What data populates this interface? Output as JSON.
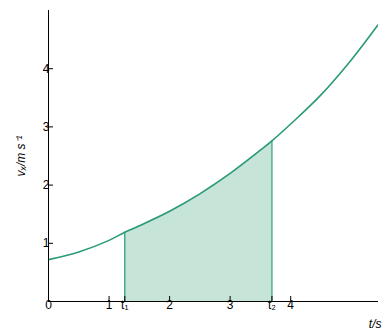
{
  "chart_data": {
    "type": "line",
    "x_label": "t/s",
    "y_label": "vₓ/m s⁻¹",
    "x": [
      0,
      0.5,
      1,
      1.26,
      1.5,
      2,
      2.5,
      3,
      3.5,
      3.69,
      4,
      4.5,
      5,
      5.44
    ],
    "values": [
      0.72,
      0.85,
      1.05,
      1.19,
      1.3,
      1.55,
      1.85,
      2.2,
      2.6,
      2.76,
      3.05,
      3.55,
      4.15,
      4.75
    ],
    "color": "#2a9a7a",
    "shaded_range": [
      1.26,
      3.69
    ],
    "shaded_color": "#c6e4d7",
    "xlim": [
      0,
      5.45
    ],
    "ylim": [
      0,
      5
    ],
    "xticks": [
      0,
      1,
      {
        "value": 1.26,
        "label": "t₁"
      },
      2,
      3,
      {
        "value": 3.69,
        "label": "t₂"
      },
      4
    ],
    "yticks": [
      1,
      2,
      3,
      4
    ],
    "grid": false
  }
}
